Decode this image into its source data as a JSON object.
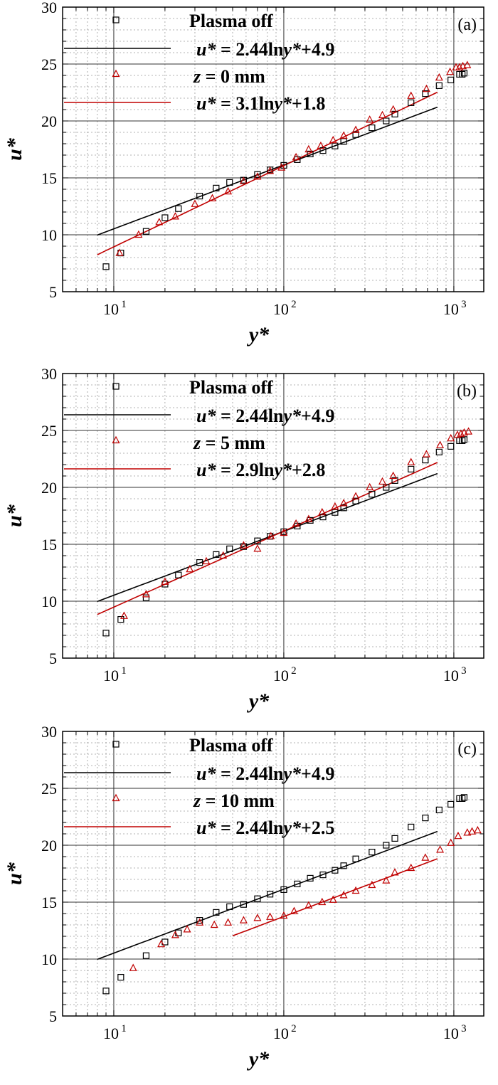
{
  "chart_data": [
    {
      "type": "scatter",
      "panel_label": "(a)",
      "xlabel": "y*",
      "ylabel": "u*",
      "xscale": "log",
      "xlim": [
        5,
        1500
      ],
      "ylim": [
        5,
        30
      ],
      "xticks": [
        {
          "value": 10,
          "base": "10",
          "exp": "1"
        },
        {
          "value": 100,
          "base": "10",
          "exp": "2"
        },
        {
          "value": 1000,
          "base": "10",
          "exp": "3"
        }
      ],
      "yticks": [
        5,
        10,
        15,
        20,
        25,
        30
      ],
      "grid": true,
      "legend_position": "top-left",
      "series": [
        {
          "name": "Plasma off",
          "marker": "square",
          "color": "#000000",
          "x": [
            9,
            11,
            15.5,
            20,
            24,
            32,
            40,
            48,
            58,
            70,
            83,
            100,
            120,
            143,
            170,
            200,
            225,
            265,
            330,
            400,
            450,
            560,
            680,
            820,
            960,
            1080,
            1120,
            1150
          ],
          "y": [
            7.2,
            8.4,
            10.3,
            11.5,
            12.3,
            13.4,
            14.1,
            14.6,
            14.8,
            15.3,
            15.7,
            16.1,
            16.6,
            17.1,
            17.4,
            17.8,
            18.2,
            18.8,
            19.4,
            20.0,
            20.6,
            21.6,
            22.4,
            23.1,
            23.6,
            24.1,
            24.1,
            24.2
          ]
        },
        {
          "name": "z = 0 mm",
          "marker": "triangle",
          "color": "#c00000",
          "x": [
            10.8,
            14,
            18.5,
            23,
            30,
            38,
            47,
            58,
            70,
            83,
            97,
            118,
            140,
            165,
            195,
            225,
            265,
            320,
            380,
            440,
            560,
            690,
            820,
            950,
            1030,
            1080,
            1130,
            1200
          ],
          "y": [
            8.4,
            10.0,
            11.1,
            11.6,
            12.7,
            13.2,
            13.8,
            14.7,
            15.1,
            15.6,
            15.9,
            16.8,
            17.5,
            17.8,
            18.3,
            18.7,
            19.2,
            20.1,
            20.5,
            21.0,
            22.2,
            22.8,
            23.8,
            24.3,
            24.7,
            24.7,
            24.8,
            24.9
          ]
        },
        {
          "name": "u* = 2.44lny*+4.9",
          "line": true,
          "color": "#000000",
          "slope": 2.44,
          "intercept": 4.9,
          "x_range": [
            8,
            800
          ]
        },
        {
          "name": "u* = 3.1lny*+1.8",
          "line": true,
          "color": "#c00000",
          "slope": 3.1,
          "intercept": 1.8,
          "x_range": [
            8,
            800
          ]
        }
      ]
    },
    {
      "type": "scatter",
      "panel_label": "(b)",
      "xlabel": "y*",
      "ylabel": "u*",
      "xscale": "log",
      "xlim": [
        5,
        1500
      ],
      "ylim": [
        5,
        30
      ],
      "xticks": [
        {
          "value": 10,
          "base": "10",
          "exp": "1"
        },
        {
          "value": 100,
          "base": "10",
          "exp": "2"
        },
        {
          "value": 1000,
          "base": "10",
          "exp": "3"
        }
      ],
      "yticks": [
        5,
        10,
        15,
        20,
        25,
        30
      ],
      "grid": true,
      "legend_position": "top-left",
      "series": [
        {
          "name": "Plasma off",
          "marker": "square",
          "color": "#000000",
          "x": [
            9,
            11,
            15.5,
            20,
            24,
            32,
            40,
            48,
            58,
            70,
            83,
            100,
            120,
            143,
            170,
            200,
            225,
            265,
            330,
            400,
            450,
            560,
            680,
            820,
            960,
            1080,
            1120,
            1150
          ],
          "y": [
            7.2,
            8.4,
            10.3,
            11.5,
            12.3,
            13.4,
            14.1,
            14.6,
            14.8,
            15.3,
            15.7,
            16.1,
            16.6,
            17.1,
            17.4,
            17.8,
            18.2,
            18.8,
            19.4,
            20.0,
            20.6,
            21.6,
            22.4,
            23.1,
            23.6,
            24.1,
            24.1,
            24.2
          ]
        },
        {
          "name": "z = 5 mm",
          "marker": "triangle",
          "color": "#c00000",
          "x": [
            11.5,
            15.5,
            20,
            28,
            35,
            44,
            58,
            70,
            84,
            100,
            118,
            140,
            168,
            200,
            225,
            265,
            320,
            380,
            440,
            560,
            690,
            830,
            960,
            1050,
            1100,
            1150,
            1220
          ],
          "y": [
            8.7,
            10.6,
            11.7,
            12.8,
            13.5,
            14.0,
            14.9,
            14.6,
            15.7,
            16.0,
            16.8,
            17.2,
            17.8,
            18.3,
            18.6,
            19.2,
            20.0,
            20.5,
            21.0,
            22.2,
            22.9,
            23.7,
            24.3,
            24.6,
            24.7,
            24.8,
            24.9
          ]
        },
        {
          "name": "u* = 2.44lny*+4.9",
          "line": true,
          "color": "#000000",
          "slope": 2.44,
          "intercept": 4.9,
          "x_range": [
            8,
            800
          ]
        },
        {
          "name": "u* = 2.9lny*+2.8",
          "line": true,
          "color": "#c00000",
          "slope": 2.9,
          "intercept": 2.8,
          "x_range": [
            8,
            800
          ]
        }
      ]
    },
    {
      "type": "scatter",
      "panel_label": "(c)",
      "xlabel": "y*",
      "ylabel": "u*",
      "xscale": "log",
      "xlim": [
        5,
        1500
      ],
      "ylim": [
        5,
        30
      ],
      "xticks": [
        {
          "value": 10,
          "base": "10",
          "exp": "1"
        },
        {
          "value": 100,
          "base": "10",
          "exp": "2"
        },
        {
          "value": 1000,
          "base": "10",
          "exp": "3"
        }
      ],
      "yticks": [
        5,
        10,
        15,
        20,
        25,
        30
      ],
      "grid": true,
      "legend_position": "top-left",
      "series": [
        {
          "name": "Plasma off",
          "marker": "square",
          "color": "#000000",
          "x": [
            9,
            11,
            15.5,
            20,
            24,
            32,
            40,
            48,
            58,
            70,
            83,
            100,
            120,
            143,
            170,
            200,
            225,
            265,
            330,
            400,
            450,
            560,
            680,
            820,
            960,
            1080,
            1120,
            1150
          ],
          "y": [
            7.2,
            8.4,
            10.3,
            11.5,
            12.3,
            13.4,
            14.1,
            14.6,
            14.8,
            15.3,
            15.7,
            16.1,
            16.6,
            17.1,
            17.4,
            17.8,
            18.2,
            18.8,
            19.4,
            20.0,
            20.6,
            21.6,
            22.4,
            23.1,
            23.6,
            24.1,
            24.1,
            24.2
          ]
        },
        {
          "name": "z = 10 mm",
          "marker": "triangle",
          "color": "#c00000",
          "x": [
            13,
            19,
            23,
            27,
            32,
            39,
            47,
            58,
            70,
            83,
            100,
            115,
            140,
            168,
            195,
            225,
            265,
            330,
            400,
            450,
            560,
            680,
            830,
            960,
            1060,
            1200,
            1280,
            1380
          ],
          "y": [
            9.2,
            11.3,
            12.1,
            12.6,
            13.2,
            13.0,
            13.2,
            13.4,
            13.6,
            13.7,
            13.8,
            14.2,
            14.7,
            15.0,
            15.2,
            15.6,
            16.0,
            16.5,
            16.9,
            17.6,
            18.0,
            18.9,
            19.6,
            20.2,
            20.8,
            21.1,
            21.2,
            21.3
          ]
        },
        {
          "name": "u* = 2.44lny*+4.9",
          "line": true,
          "color": "#000000",
          "slope": 2.44,
          "intercept": 4.9,
          "x_range": [
            8,
            800
          ]
        },
        {
          "name": "u* = 2.44lny*+2.5",
          "line": true,
          "color": "#c00000",
          "slope": 2.44,
          "intercept": 2.5,
          "x_range": [
            50,
            800
          ]
        }
      ]
    }
  ]
}
